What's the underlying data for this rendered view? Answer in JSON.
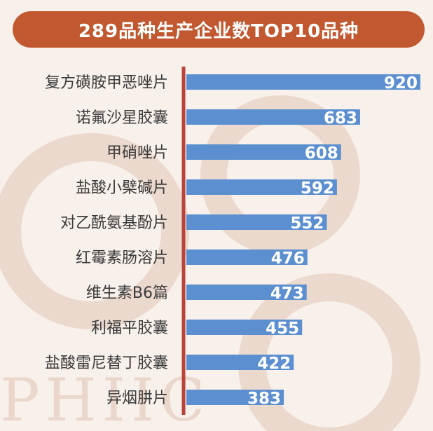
{
  "title": "289品种生产企业数TOP10品种",
  "watermark": "PHIIC",
  "colors": {
    "title_bg": "#c1582f",
    "axis_line": "#b8433a",
    "bar": "#5b8fd0",
    "background": "#f8f0ea",
    "deco": "#ecd9cd"
  },
  "chart_data": {
    "type": "bar",
    "orientation": "horizontal",
    "title": "289品种生产企业数TOP10品种",
    "categories": [
      "复方磺胺甲恶唑片",
      "诺氟沙星胶囊",
      "甲硝唑片",
      "盐酸小檗碱片",
      "对乙酰氨基酚片",
      "红霉素肠溶片",
      "维生素B6篇",
      "利福平胶囊",
      "盐酸雷尼替丁胶囊",
      "异烟肼片"
    ],
    "values": [
      920,
      683,
      608,
      592,
      552,
      476,
      473,
      455,
      422,
      383
    ],
    "data_labels": [
      "920",
      "683",
      "608",
      "592",
      "552",
      "476",
      "473",
      "455",
      "422",
      "383"
    ],
    "xlabel": "",
    "ylabel": "",
    "xlim": [
      0,
      1000
    ],
    "grid": false,
    "legend": "none"
  }
}
